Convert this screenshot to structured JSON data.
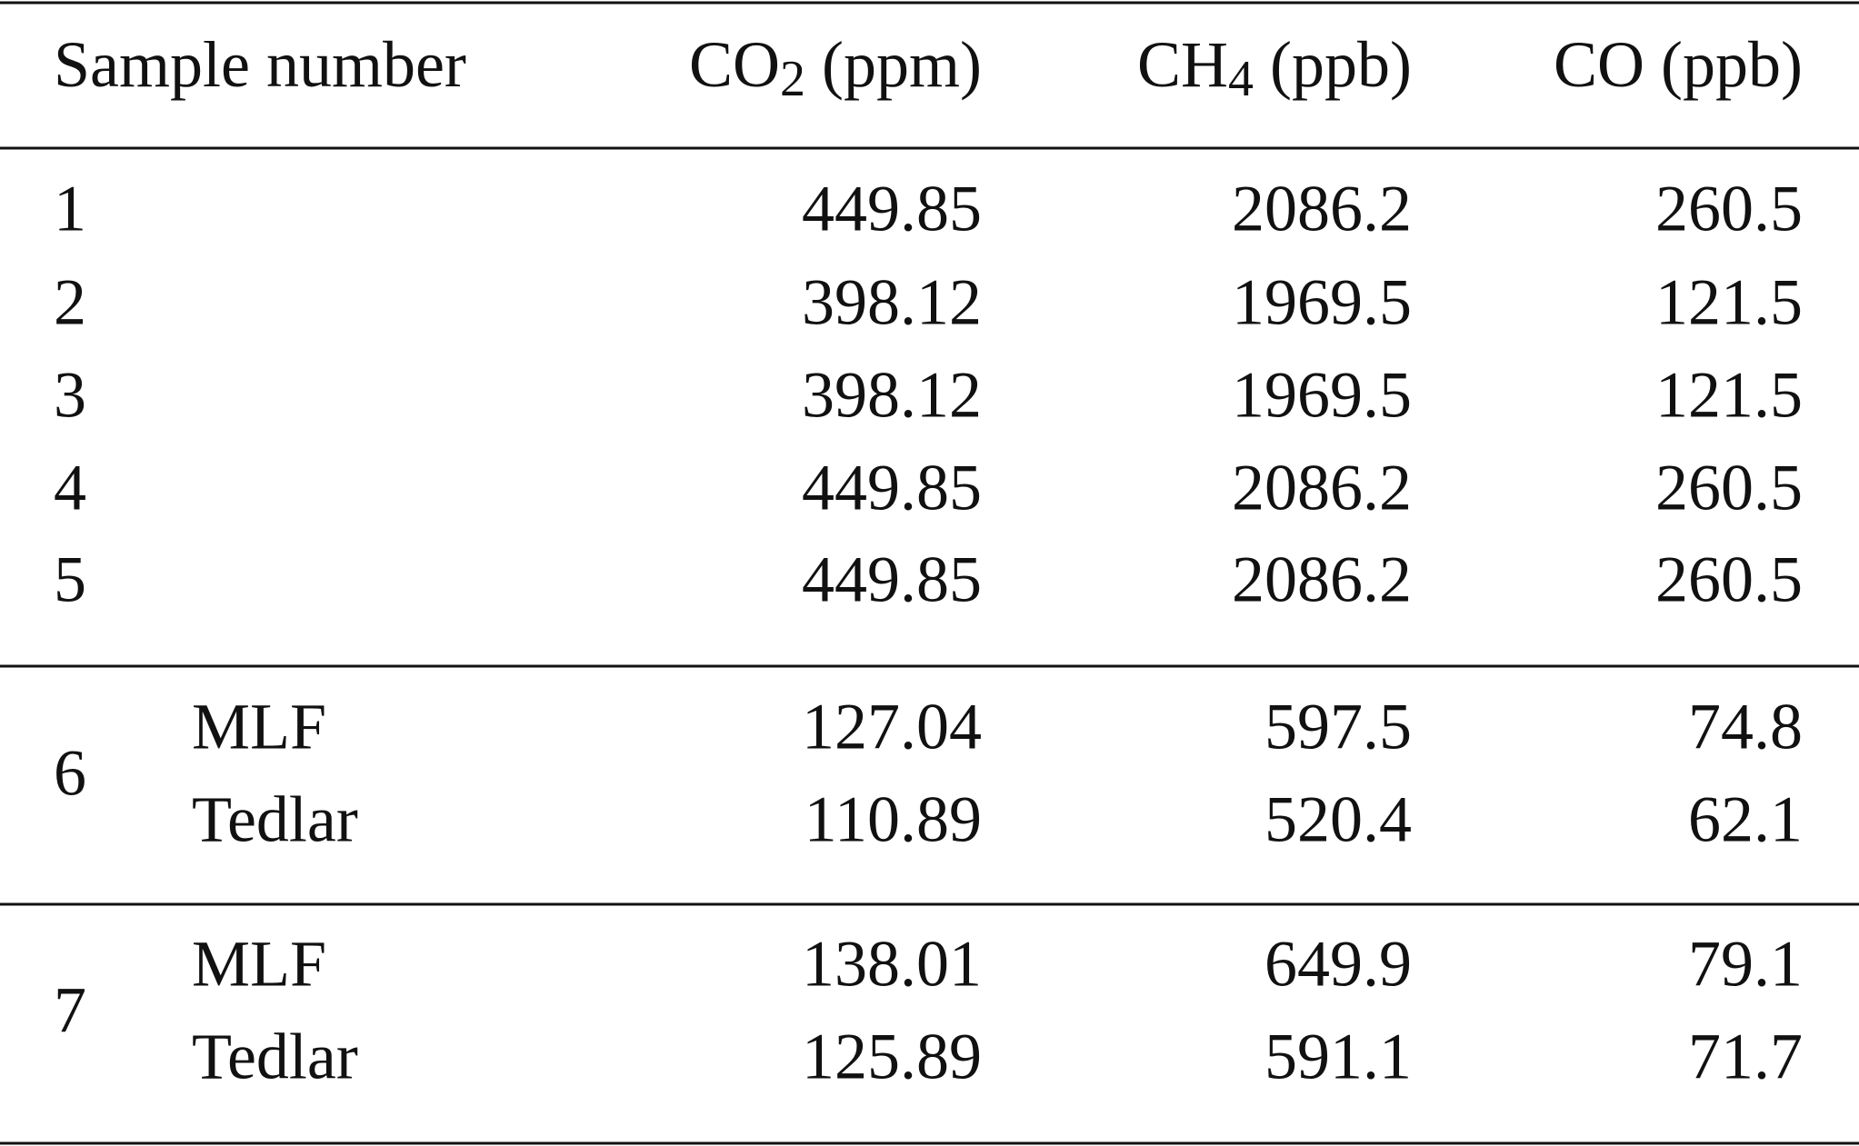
{
  "table": {
    "header": [
      {
        "text": "Sample number"
      },
      {
        "text": "CO",
        "sub": "2",
        "unit": "(ppm)"
      },
      {
        "text": "CH",
        "sub": "4",
        "unit": "(ppb)"
      },
      {
        "text": "CO",
        "unit": "(ppb)"
      }
    ],
    "samples": [
      {
        "number": "1",
        "values": [
          "449.85",
          "2086.2",
          "260.5"
        ]
      },
      {
        "number": "2",
        "values": [
          "398.12",
          "1969.5",
          "121.5"
        ]
      },
      {
        "number": "3",
        "values": [
          "398.12",
          "1969.5",
          "121.5"
        ]
      },
      {
        "number": "4",
        "values": [
          "449.85",
          "2086.2",
          "260.5"
        ]
      },
      {
        "number": "5",
        "values": [
          "449.85",
          "2086.2",
          "260.5"
        ]
      }
    ],
    "groups": [
      {
        "number": "6",
        "rows": [
          {
            "container": "MLF",
            "values": [
              "127.04",
              "597.5",
              "74.8"
            ]
          },
          {
            "container": "Tedlar",
            "values": [
              "110.89",
              "520.4",
              "62.1"
            ]
          }
        ]
      },
      {
        "number": "7",
        "rows": [
          {
            "container": "MLF",
            "values": [
              "138.01",
              "649.9",
              "79.1"
            ]
          },
          {
            "container": "Tedlar",
            "values": [
              "125.89",
              "591.1",
              "71.7"
            ]
          }
        ]
      }
    ]
  }
}
